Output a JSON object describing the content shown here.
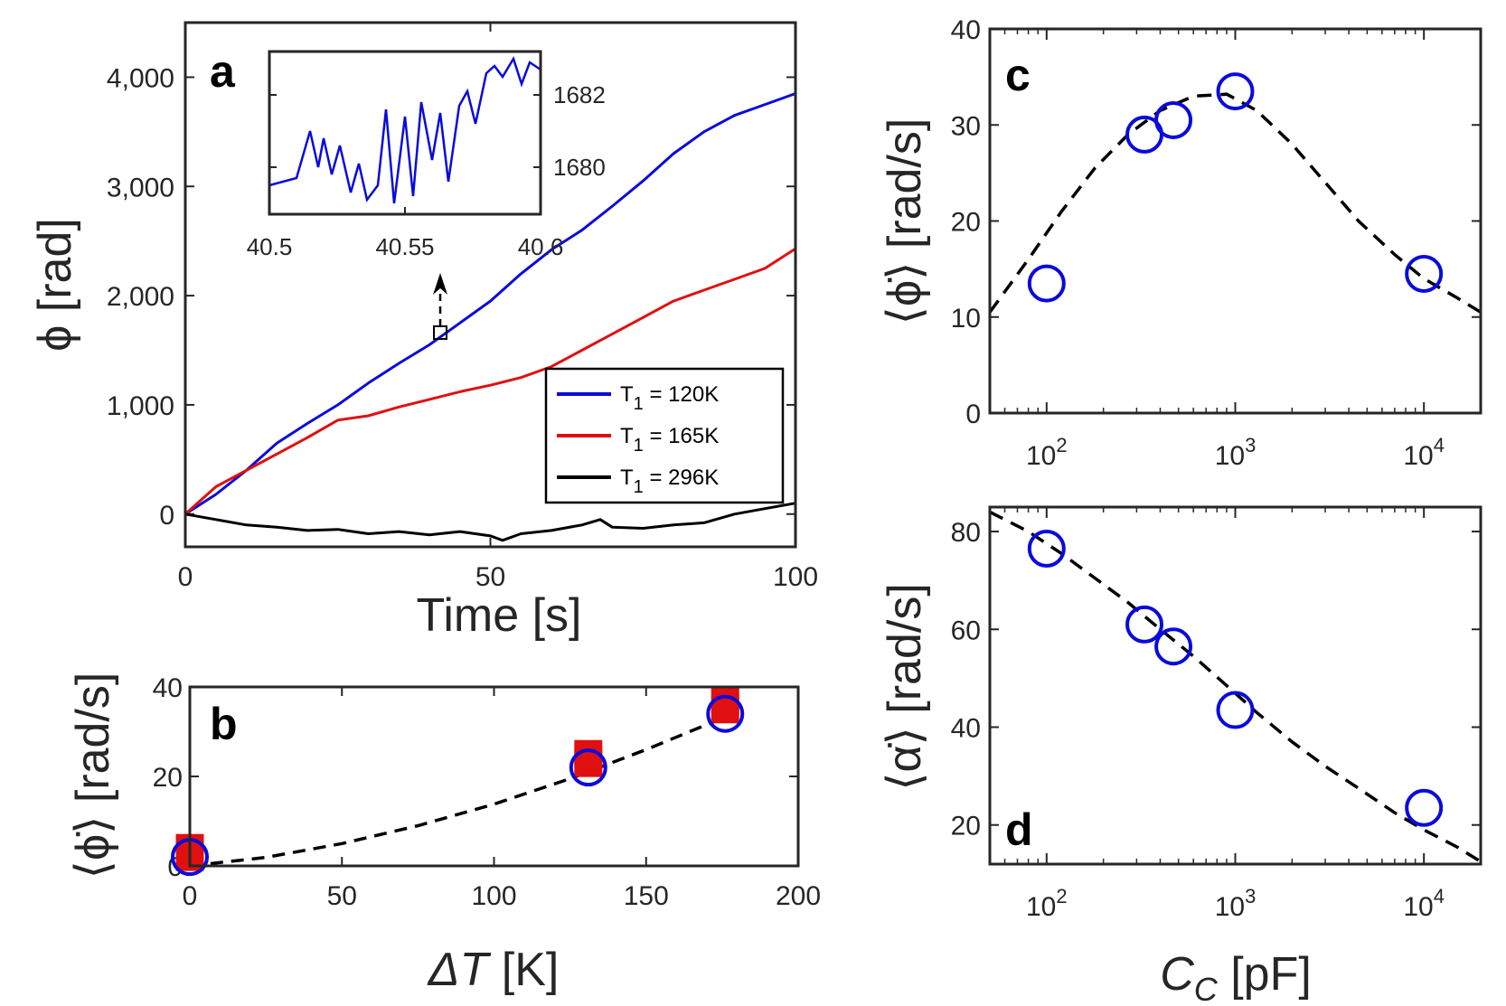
{
  "chart_data": [
    {
      "id": "a",
      "type": "line",
      "panel_label": "a",
      "xlabel": "Time [s]",
      "ylabel": "ϕ [rad]",
      "xlim": [
        0,
        100
      ],
      "ylim": [
        -300,
        4500
      ],
      "xticks": [
        0,
        50,
        100
      ],
      "xtick_labels": [
        "0",
        "50",
        "100"
      ],
      "yticks": [
        0,
        1000,
        2000,
        3000,
        4000
      ],
      "ytick_labels": [
        "0",
        "1,000",
        "2,000",
        "3,000",
        "4,000"
      ],
      "legend_position": "bottom-right",
      "series": [
        {
          "name": "T1 = 120K",
          "label_main": "T",
          "label_sub": "1",
          "label_rest": " = 120K",
          "color": "#0a0adc",
          "x": [
            0,
            5,
            10,
            15,
            20,
            25,
            30,
            35,
            40,
            45,
            50,
            55,
            60,
            65,
            70,
            75,
            80,
            85,
            90,
            95,
            100
          ],
          "y": [
            0,
            180,
            400,
            650,
            830,
            1000,
            1200,
            1380,
            1550,
            1750,
            1950,
            2200,
            2420,
            2600,
            2820,
            3050,
            3300,
            3500,
            3650,
            3750,
            3850
          ]
        },
        {
          "name": "T1 = 165K",
          "label_main": "T",
          "label_sub": "1",
          "label_rest": " = 165K",
          "color": "#e01010",
          "x": [
            0,
            5,
            10,
            15,
            20,
            25,
            30,
            35,
            40,
            45,
            50,
            55,
            60,
            65,
            70,
            75,
            80,
            85,
            90,
            95,
            100
          ],
          "y": [
            0,
            250,
            400,
            550,
            700,
            860,
            900,
            980,
            1050,
            1120,
            1180,
            1250,
            1350,
            1500,
            1650,
            1800,
            1950,
            2050,
            2150,
            2250,
            2430
          ]
        },
        {
          "name": "T1 = 296K",
          "label_main": "T",
          "label_sub": "1",
          "label_rest": " = 296K",
          "color": "#000000",
          "x": [
            0,
            5,
            10,
            15,
            20,
            25,
            30,
            35,
            40,
            45,
            50,
            52,
            55,
            60,
            65,
            68,
            70,
            75,
            80,
            85,
            90,
            95,
            100
          ],
          "y": [
            0,
            -50,
            -100,
            -120,
            -150,
            -140,
            -180,
            -160,
            -190,
            -160,
            -200,
            -240,
            -180,
            -150,
            -100,
            -50,
            -120,
            -130,
            -100,
            -80,
            0,
            50,
            100
          ]
        }
      ],
      "inset": {
        "xlim": [
          40.5,
          40.6
        ],
        "ylim": [
          1678.7,
          1683.2
        ],
        "xticks": [
          40.5,
          40.55,
          40.6
        ],
        "xtick_labels": [
          "40.5",
          "40.55",
          "40.6"
        ],
        "yticks": [
          1680,
          1682
        ],
        "ytick_labels": [
          "1680",
          "1682"
        ],
        "color": "#0a0adc",
        "x": [
          40.5,
          40.505,
          40.51,
          40.515,
          40.518,
          40.52,
          40.523,
          40.526,
          40.53,
          40.533,
          40.536,
          40.54,
          40.543,
          40.546,
          40.55,
          40.553,
          40.556,
          40.56,
          40.563,
          40.566,
          40.57,
          40.573,
          40.576,
          40.58,
          40.583,
          40.586,
          40.59,
          40.593,
          40.596,
          40.6
        ],
        "y": [
          1679.5,
          1679.6,
          1679.7,
          1681.0,
          1680.0,
          1680.8,
          1679.8,
          1680.6,
          1679.3,
          1680.1,
          1679.1,
          1679.5,
          1681.6,
          1679.0,
          1681.4,
          1679.2,
          1681.8,
          1680.2,
          1681.5,
          1679.6,
          1681.7,
          1682.1,
          1681.2,
          1682.6,
          1682.8,
          1682.5,
          1683.0,
          1682.3,
          1682.9,
          1682.7
        ]
      },
      "annotation": {
        "x": 40.55,
        "y": 1680,
        "text": "zoom marker"
      }
    },
    {
      "id": "b",
      "type": "scatter",
      "panel_label": "b",
      "xlabel": "ΔT [K]",
      "xlabel_main": "ΔT",
      "xlabel_unit": " [K]",
      "ylabel": "⟨ϕ̇⟩ [rad/s]",
      "xlim": [
        0,
        200
      ],
      "ylim": [
        0,
        40
      ],
      "xticks": [
        0,
        50,
        100,
        150,
        200
      ],
      "xtick_labels": [
        "0",
        "50",
        "100",
        "150",
        "200"
      ],
      "yticks": [
        0,
        20,
        40
      ],
      "ytick_labels": [
        "0",
        "20",
        "40"
      ],
      "series": [
        {
          "name": "measured (red squares)",
          "marker": "square",
          "color": "#e01010",
          "x": [
            0,
            0,
            131,
            131,
            176,
            176
          ],
          "y": [
            2,
            4,
            23,
            25,
            35,
            37
          ]
        },
        {
          "name": "measured (blue circles)",
          "marker": "circle",
          "color": "#0a0adc",
          "x": [
            0,
            131,
            176
          ],
          "y": [
            2,
            22,
            34
          ]
        }
      ],
      "fit": {
        "name": "fit",
        "style": "dashed",
        "color": "#000000",
        "x": [
          0,
          25,
          50,
          75,
          100,
          125,
          150,
          175
        ],
        "y": [
          0,
          1.9,
          5.0,
          9.0,
          13.8,
          19.5,
          26.0,
          33.0
        ]
      }
    },
    {
      "id": "c",
      "type": "scatter",
      "panel_label": "c",
      "xscale": "log",
      "xlabel": "",
      "ylabel": "⟨ϕ̇⟩ [rad/s]",
      "xlim": [
        50,
        20000
      ],
      "ylim": [
        0,
        40
      ],
      "xticks": [
        100,
        1000,
        10000
      ],
      "xtick_labels": [
        "10^2",
        "10^3",
        "10^4"
      ],
      "xtick_base": "10",
      "xtick_exps": [
        "2",
        "3",
        "4"
      ],
      "yticks": [
        0,
        10,
        20,
        30,
        40
      ],
      "ytick_labels": [
        "0",
        "10",
        "20",
        "30",
        "40"
      ],
      "series": [
        {
          "name": "data",
          "marker": "circle",
          "color": "#0a0adc",
          "x": [
            100,
            330,
            470,
            1000,
            10000
          ],
          "y": [
            13.5,
            29,
            30.5,
            33.5,
            14.5
          ]
        }
      ],
      "fit": {
        "name": "fit",
        "style": "dashed",
        "color": "#000000",
        "x": [
          50,
          80,
          120,
          180,
          270,
          400,
          600,
          900,
          1300,
          2000,
          3000,
          4500,
          7000,
          10000,
          15000,
          20000
        ],
        "y": [
          10.5,
          16,
          21,
          25.5,
          29,
          31.5,
          33,
          33.2,
          31.5,
          28,
          24,
          20,
          16.5,
          14,
          12,
          10.5
        ]
      }
    },
    {
      "id": "d",
      "type": "scatter",
      "panel_label": "d",
      "xscale": "log",
      "xlabel": "Cc [pF]",
      "xlabel_main": "C",
      "xlabel_sub": "C",
      "xlabel_unit": " [pF]",
      "ylabel": "⟨α̇⟩ [rad/s]",
      "xlim": [
        50,
        20000
      ],
      "ylim": [
        12,
        85
      ],
      "xticks": [
        100,
        1000,
        10000
      ],
      "xtick_labels": [
        "10^2",
        "10^3",
        "10^4"
      ],
      "xtick_base": "10",
      "xtick_exps": [
        "2",
        "3",
        "4"
      ],
      "yticks": [
        20,
        40,
        60,
        80
      ],
      "ytick_labels": [
        "20",
        "40",
        "60",
        "80"
      ],
      "series": [
        {
          "name": "data",
          "marker": "circle",
          "color": "#0a0adc",
          "x": [
            100,
            330,
            470,
            1000,
            10000
          ],
          "y": [
            76.5,
            61,
            56.5,
            43.5,
            23.5
          ]
        }
      ],
      "fit": {
        "name": "fit",
        "style": "dashed",
        "color": "#000000",
        "x": [
          50,
          80,
          120,
          180,
          270,
          400,
          600,
          900,
          1300,
          2000,
          3000,
          4500,
          7000,
          10000,
          15000,
          20000
        ],
        "y": [
          84,
          80,
          75.5,
          70.5,
          65.5,
          60,
          54.5,
          48.5,
          43,
          37,
          32,
          27.5,
          22.5,
          19,
          15.5,
          12.5
        ]
      }
    }
  ]
}
